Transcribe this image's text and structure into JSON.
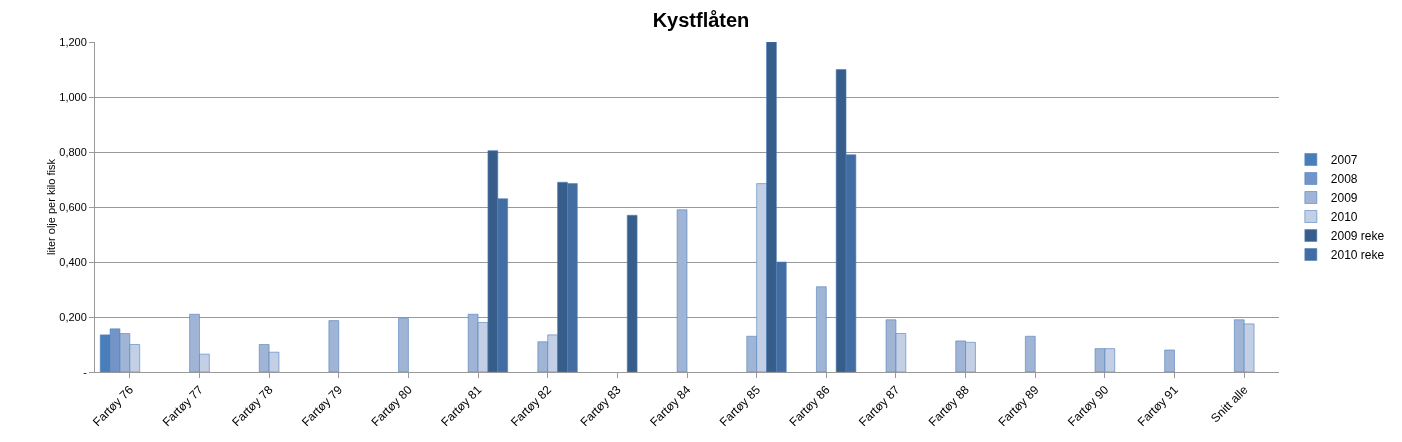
{
  "chart_data": {
    "type": "bar",
    "title": "Kystflåten",
    "ylabel": "liter olje per kilo fisk",
    "categories": [
      "Fartøy 76",
      "Fartøy 77",
      "Fartøy 78",
      "Fartøy 79",
      "Fartøy 80",
      "Fartøy 81",
      "Fartøy 82",
      "Fartøy 83",
      "Fartøy 84",
      "Fartøy 85",
      "Fartøy 86",
      "Fartøy 87",
      "Fartøy 88",
      "Fartøy 89",
      "Fartøy 90",
      "Fartøy 91",
      "Snitt alle"
    ],
    "series": [
      {
        "name": "2007",
        "color": "#4a7ebb",
        "values": [
          0.135,
          null,
          null,
          null,
          null,
          null,
          null,
          null,
          null,
          null,
          null,
          null,
          null,
          null,
          null,
          null,
          null
        ]
      },
      {
        "name": "2008",
        "color": "#7394c8",
        "values": [
          0.157,
          null,
          null,
          null,
          null,
          null,
          null,
          null,
          null,
          null,
          null,
          null,
          null,
          null,
          null,
          null,
          null
        ]
      },
      {
        "name": "2009",
        "color": "#a0b4d6",
        "values": [
          0.14,
          0.21,
          0.1,
          0.187,
          0.195,
          0.21,
          0.11,
          null,
          0.59,
          0.13,
          0.31,
          0.19,
          0.113,
          0.13,
          0.085,
          0.08,
          0.19
        ]
      },
      {
        "name": "2010",
        "color": "#c3cfe5",
        "values": [
          0.1,
          0.065,
          0.072,
          null,
          null,
          0.18,
          0.135,
          null,
          null,
          0.685,
          null,
          0.14,
          0.108,
          null,
          0.085,
          null,
          0.175
        ]
      },
      {
        "name": "2009 reke",
        "color": "#375d8a",
        "values": [
          null,
          null,
          null,
          null,
          null,
          0.805,
          0.69,
          0.57,
          null,
          1.2,
          1.1,
          null,
          null,
          null,
          null,
          null,
          null
        ]
      },
      {
        "name": "2010 reke",
        "color": "#426da3",
        "values": [
          null,
          null,
          null,
          null,
          null,
          0.63,
          0.685,
          null,
          null,
          0.4,
          0.79,
          null,
          null,
          null,
          null,
          null,
          null
        ]
      }
    ],
    "ylim": [
      0,
      1.2
    ],
    "yticks": [
      {
        "value": 0,
        "label": "-"
      },
      {
        "value": 0.2,
        "label": "0,200"
      },
      {
        "value": 0.4,
        "label": "0,400"
      },
      {
        "value": 0.6,
        "label": "0,600"
      },
      {
        "value": 0.8,
        "label": "0,800"
      },
      {
        "value": 1.0,
        "label": "1,000"
      },
      {
        "value": 1.2,
        "label": "1,200"
      }
    ],
    "grid": "y",
    "legend": "right"
  }
}
